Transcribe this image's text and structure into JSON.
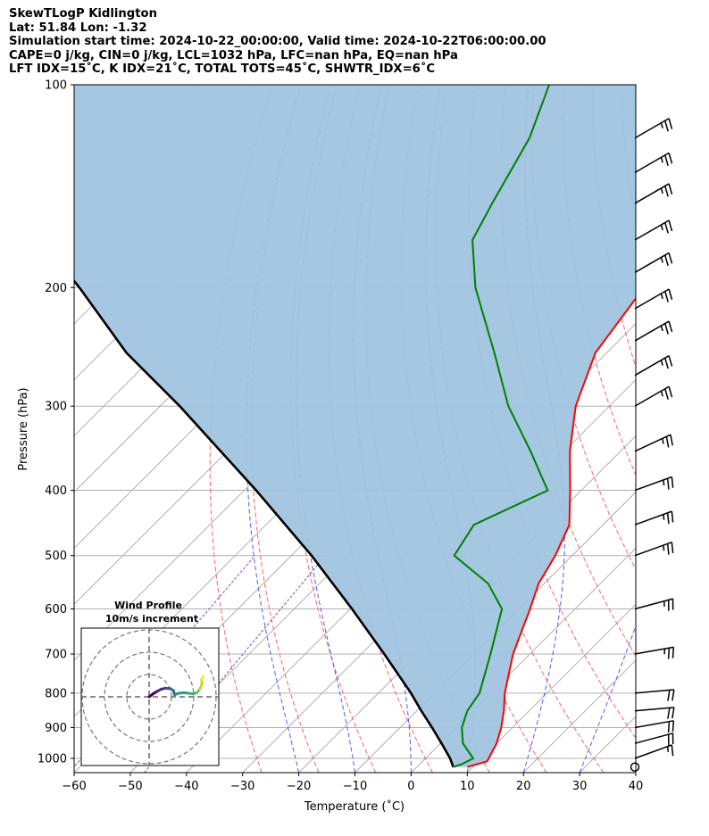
{
  "title_lines": [
    "SkewTLogP Kidlington",
    "Lat: 51.84   Lon: -1.32",
    "Simulation start time: 2024-10-22_00:00:00, Valid time: 2024-10-22T06:00:00.00",
    "CAPE=0 j/kg, CIN=0 j/kg, LCL=1032 hPa, LFC=nan hPa, EQ=nan hPa",
    "LFT IDX=15˚C, K IDX=21˚C, TOTAL TOTS=45˚C, SHWTR_IDX=6˚C"
  ],
  "chart_data": {
    "type": "skew-t log-p",
    "xlabel": "Temperature (˚C)",
    "ylabel": "Pressure (hPa)",
    "xlim": [
      -60,
      40
    ],
    "ylim_hpa": [
      1050,
      100
    ],
    "log_pressure": true,
    "skew_deg": 45,
    "grid": true,
    "x_ticks": [
      -60,
      -50,
      -40,
      -30,
      -20,
      -10,
      0,
      10,
      20,
      30,
      40
    ],
    "x_tick_labels": [
      "−60",
      "−50",
      "−40",
      "−30",
      "−20",
      "−10",
      "0",
      "10",
      "20",
      "30",
      "40"
    ],
    "p_ticks": [
      1000,
      900,
      800,
      700,
      600,
      500,
      400,
      300,
      200,
      100
    ],
    "temperature": {
      "color": "#ff0000",
      "points": [
        [
          1030,
          9
        ],
        [
          1010,
          11.5
        ],
        [
          950,
          10
        ],
        [
          900,
          8
        ],
        [
          850,
          5.5
        ],
        [
          800,
          2.5
        ],
        [
          700,
          -3
        ],
        [
          600,
          -8
        ],
        [
          550,
          -11
        ],
        [
          500,
          -13
        ],
        [
          450,
          -16
        ],
        [
          400,
          -22
        ],
        [
          350,
          -29
        ],
        [
          300,
          -36
        ],
        [
          250,
          -42
        ],
        [
          200,
          -45
        ],
        [
          150,
          -50
        ],
        [
          100,
          -53
        ]
      ]
    },
    "dewpoint": {
      "color": "#008000",
      "points": [
        [
          1030,
          6.5
        ],
        [
          1020,
          7.5
        ],
        [
          1000,
          8.5
        ],
        [
          950,
          4
        ],
        [
          900,
          1
        ],
        [
          850,
          -1
        ],
        [
          800,
          -2
        ],
        [
          700,
          -7
        ],
        [
          600,
          -13
        ],
        [
          550,
          -20
        ],
        [
          500,
          -31
        ],
        [
          450,
          -33
        ],
        [
          400,
          -26
        ],
        [
          350,
          -36
        ],
        [
          300,
          -48
        ],
        [
          250,
          -60
        ],
        [
          200,
          -75
        ],
        [
          170,
          -84
        ],
        [
          150,
          -87
        ],
        [
          120,
          -92
        ],
        [
          100,
          -98
        ]
      ]
    },
    "parcel": {
      "color": "#000000",
      "points": [
        [
          1030,
          6.5
        ],
        [
          1000,
          4.4
        ],
        [
          950,
          0.2
        ],
        [
          900,
          -4.3
        ],
        [
          850,
          -9.2
        ],
        [
          800,
          -14.2
        ],
        [
          700,
          -25.9
        ],
        [
          600,
          -39.7
        ],
        [
          500,
          -56.4
        ],
        [
          400,
          -77.9
        ],
        [
          300,
          -106.5
        ],
        [
          250,
          -125.5
        ],
        [
          200,
          -145.5
        ],
        [
          150,
          -172.6
        ],
        [
          100,
          -209.9
        ]
      ]
    },
    "shading_color": "#a0c4df",
    "wind_barbs": [
      {
        "p": 1030,
        "speed_kt": 0,
        "dir_deg": 0
      },
      {
        "p": 1000,
        "speed_kt": 15,
        "dir_deg": 250
      },
      {
        "p": 950,
        "speed_kt": 20,
        "dir_deg": 255
      },
      {
        "p": 900,
        "speed_kt": 20,
        "dir_deg": 260
      },
      {
        "p": 850,
        "speed_kt": 20,
        "dir_deg": 265
      },
      {
        "p": 800,
        "speed_kt": 20,
        "dir_deg": 265
      },
      {
        "p": 700,
        "speed_kt": 25,
        "dir_deg": 260
      },
      {
        "p": 600,
        "speed_kt": 25,
        "dir_deg": 255
      },
      {
        "p": 500,
        "speed_kt": 25,
        "dir_deg": 250
      },
      {
        "p": 450,
        "speed_kt": 25,
        "dir_deg": 250
      },
      {
        "p": 400,
        "speed_kt": 25,
        "dir_deg": 250
      },
      {
        "p": 350,
        "speed_kt": 25,
        "dir_deg": 245
      },
      {
        "p": 300,
        "speed_kt": 25,
        "dir_deg": 240
      },
      {
        "p": 270,
        "speed_kt": 25,
        "dir_deg": 240
      },
      {
        "p": 240,
        "speed_kt": 25,
        "dir_deg": 240
      },
      {
        "p": 215,
        "speed_kt": 25,
        "dir_deg": 240
      },
      {
        "p": 190,
        "speed_kt": 25,
        "dir_deg": 240
      },
      {
        "p": 170,
        "speed_kt": 25,
        "dir_deg": 240
      },
      {
        "p": 150,
        "speed_kt": 25,
        "dir_deg": 240
      },
      {
        "p": 135,
        "speed_kt": 25,
        "dir_deg": 240
      },
      {
        "p": 120,
        "speed_kt": 25,
        "dir_deg": 240
      }
    ],
    "wind_profile_inset": {
      "title_line1": "Wind Profile",
      "title_line2": "10m/s increment",
      "ring_count": 3,
      "hodograph_uv": [
        [
          0,
          0
        ],
        [
          0.8,
          0.6
        ],
        [
          1.6,
          1.1
        ],
        [
          2.4,
          1.5
        ],
        [
          3.2,
          1.7
        ],
        [
          4.2,
          1.6
        ],
        [
          4.8,
          1.2
        ],
        [
          5.0,
          0.4
        ],
        [
          5.8,
          0.7
        ],
        [
          6.8,
          0.8
        ],
        [
          7.8,
          0.7
        ],
        [
          8.6,
          0.6
        ],
        [
          9.4,
          0.8
        ],
        [
          10.0,
          1.6
        ],
        [
          10.4,
          2.6
        ],
        [
          10.3,
          3.4
        ],
        [
          10.6,
          4.0
        ]
      ]
    }
  }
}
